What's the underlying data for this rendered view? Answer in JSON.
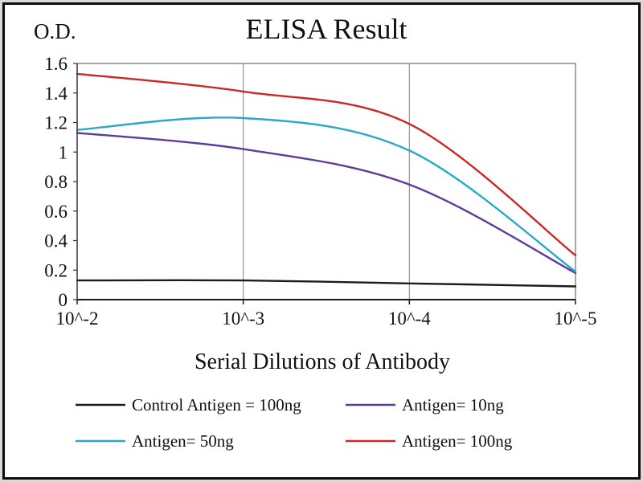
{
  "chart_data": {
    "type": "line",
    "title": "ELISA Result",
    "ylabel": "O.D.",
    "xlabel": "Serial Dilutions of Antibody",
    "x_tick_labels": [
      "10^-2",
      "10^-3",
      "10^-4",
      "10^-5"
    ],
    "y_ticks": [
      0,
      0.2,
      0.4,
      0.6,
      0.8,
      1,
      1.2,
      1.4,
      1.6
    ],
    "y_tick_labels": [
      "0",
      "0.2",
      "0.4",
      "0.6",
      "0.8",
      "1",
      "1.2",
      "1.4",
      "1.6"
    ],
    "ylim": [
      0,
      1.6
    ],
    "grid": "vertical",
    "legend_position": "bottom",
    "colors": {
      "control": "#1c1c1c",
      "antigen_10ng": "#5e3c99",
      "antigen_50ng": "#29a9c4",
      "antigen_100ng": "#cb2727",
      "gridline": "#8c8c8c",
      "plot_border": "#6e6e6e",
      "axis": "#1a1a1a"
    },
    "series": [
      {
        "name": "Control Antigen = 100ng",
        "color": "#1c1c1c",
        "values": [
          0.13,
          0.13,
          0.11,
          0.09
        ]
      },
      {
        "name": "Antigen= 10ng",
        "color": "#5e3c99",
        "values": [
          1.13,
          1.02,
          0.78,
          0.18
        ]
      },
      {
        "name": "Antigen= 50ng",
        "color": "#29a9c4",
        "values": [
          1.15,
          1.23,
          1.01,
          0.19
        ]
      },
      {
        "name": "Antigen= 100ng",
        "color": "#cb2727",
        "values": [
          1.53,
          1.41,
          1.19,
          0.3
        ]
      }
    ]
  }
}
